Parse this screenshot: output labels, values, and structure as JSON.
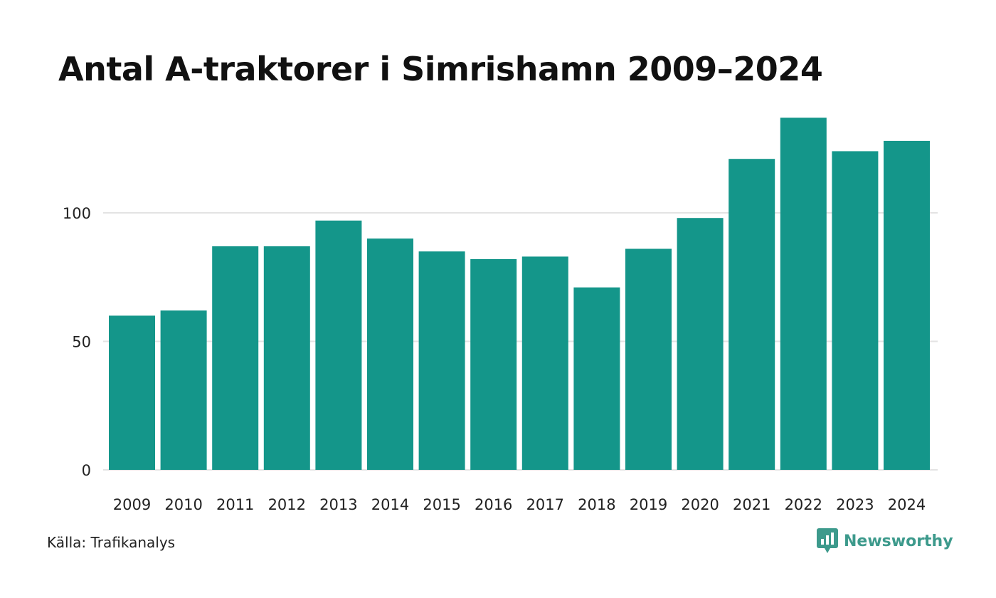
{
  "chart_data": {
    "type": "bar",
    "title": "Antal A-traktorer i Simrishamn 2009–2024",
    "categories": [
      "2009",
      "2010",
      "2011",
      "2012",
      "2013",
      "2014",
      "2015",
      "2016",
      "2017",
      "2018",
      "2019",
      "2020",
      "2021",
      "2022",
      "2023",
      "2024"
    ],
    "values": [
      60,
      62,
      87,
      87,
      97,
      90,
      85,
      82,
      83,
      71,
      86,
      98,
      121,
      137,
      124,
      128
    ],
    "ylim": [
      0,
      137
    ],
    "yticks": [
      0,
      50,
      100
    ],
    "xlabel": "",
    "ylabel": "",
    "grid": true,
    "bar_color": "#14968a",
    "grid_color": "#e3e3e3"
  },
  "footer": {
    "source": "Källa: Trafikanalys",
    "brand": "Newsworthy",
    "brand_icon": "newsworthy-logo-icon",
    "brand_color": "#3d9a8c"
  }
}
